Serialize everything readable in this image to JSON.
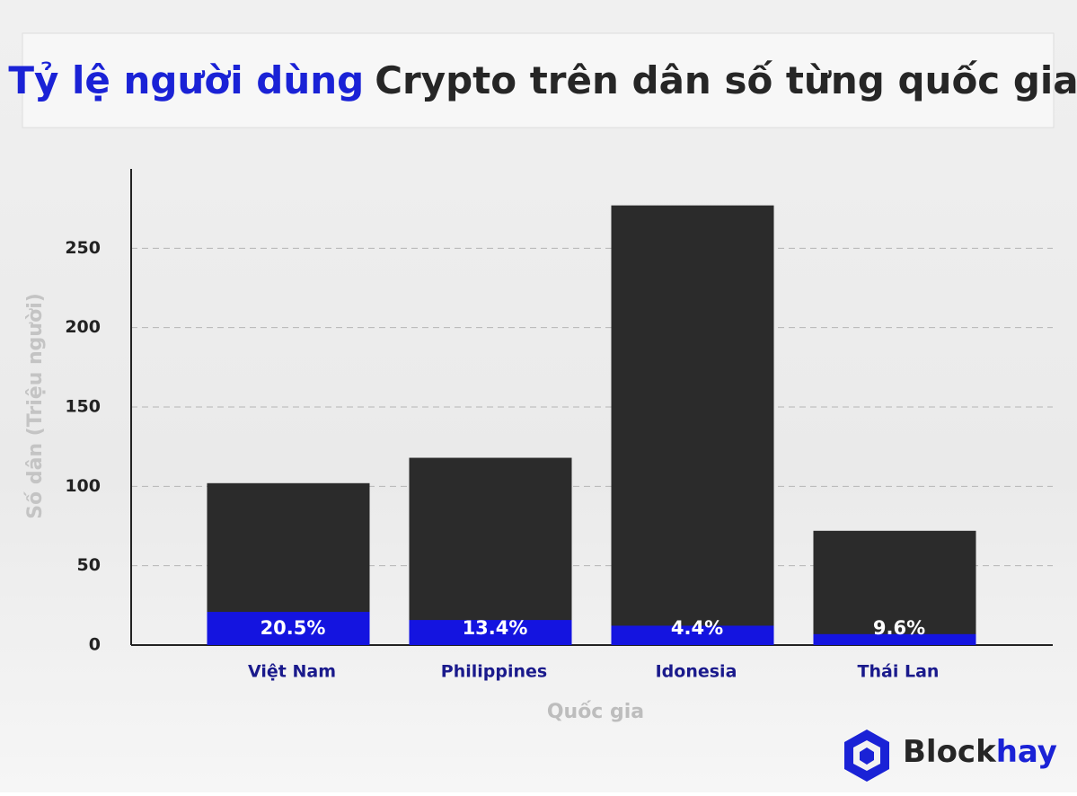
{
  "chart_data": {
    "type": "bar",
    "title_parts": [
      "Tỷ lệ người dùng",
      "Crypto trên dân số từng quốc gia"
    ],
    "title_colors": [
      "#1a22d6",
      "#262626"
    ],
    "x_label": "Quốc gia",
    "y_label": "Số dân (Triệu người)",
    "categories": [
      "Việt Nam",
      "Philippines",
      "Idonesia",
      "Thái Lan"
    ],
    "series": [
      {
        "color": "#2b2b2b",
        "values": [
          102,
          118,
          277,
          72
        ]
      },
      {
        "color": "#1414e0",
        "values": [
          20.9,
          15.8,
          12.2,
          6.9
        ]
      }
    ],
    "shares": {
      "values": [
        20.5,
        13.4,
        4.4,
        9.6
      ],
      "value_labels": [
        "20.5%",
        "13.4%",
        "4.4%",
        "9.6%"
      ]
    },
    "ylim": [
      0,
      300
    ],
    "yticks": [
      0,
      50,
      100,
      150,
      200,
      250
    ],
    "grid": true,
    "brand_parts": [
      "Block",
      "hay"
    ]
  }
}
